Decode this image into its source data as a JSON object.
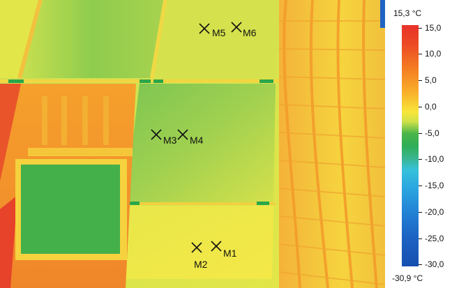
{
  "thermal_image": {
    "markers": [
      "M1",
      "M2",
      "M3",
      "M4",
      "M5",
      "M6"
    ]
  },
  "temperature_scale": {
    "max_label": "15,3 °C",
    "min_label": "-30,9 °C",
    "ticks": [
      "15,0",
      "10,0",
      "5,0",
      "0,0",
      "-5,0",
      "-10,0",
      "-15,0",
      "-20,0",
      "-25,0",
      "-30,0"
    ]
  },
  "colors": {
    "hot": "#e8322a",
    "warm": "#f9b02a",
    "neutral": "#f7e63a",
    "cool": "#49b548",
    "cold": "#1650b0"
  }
}
